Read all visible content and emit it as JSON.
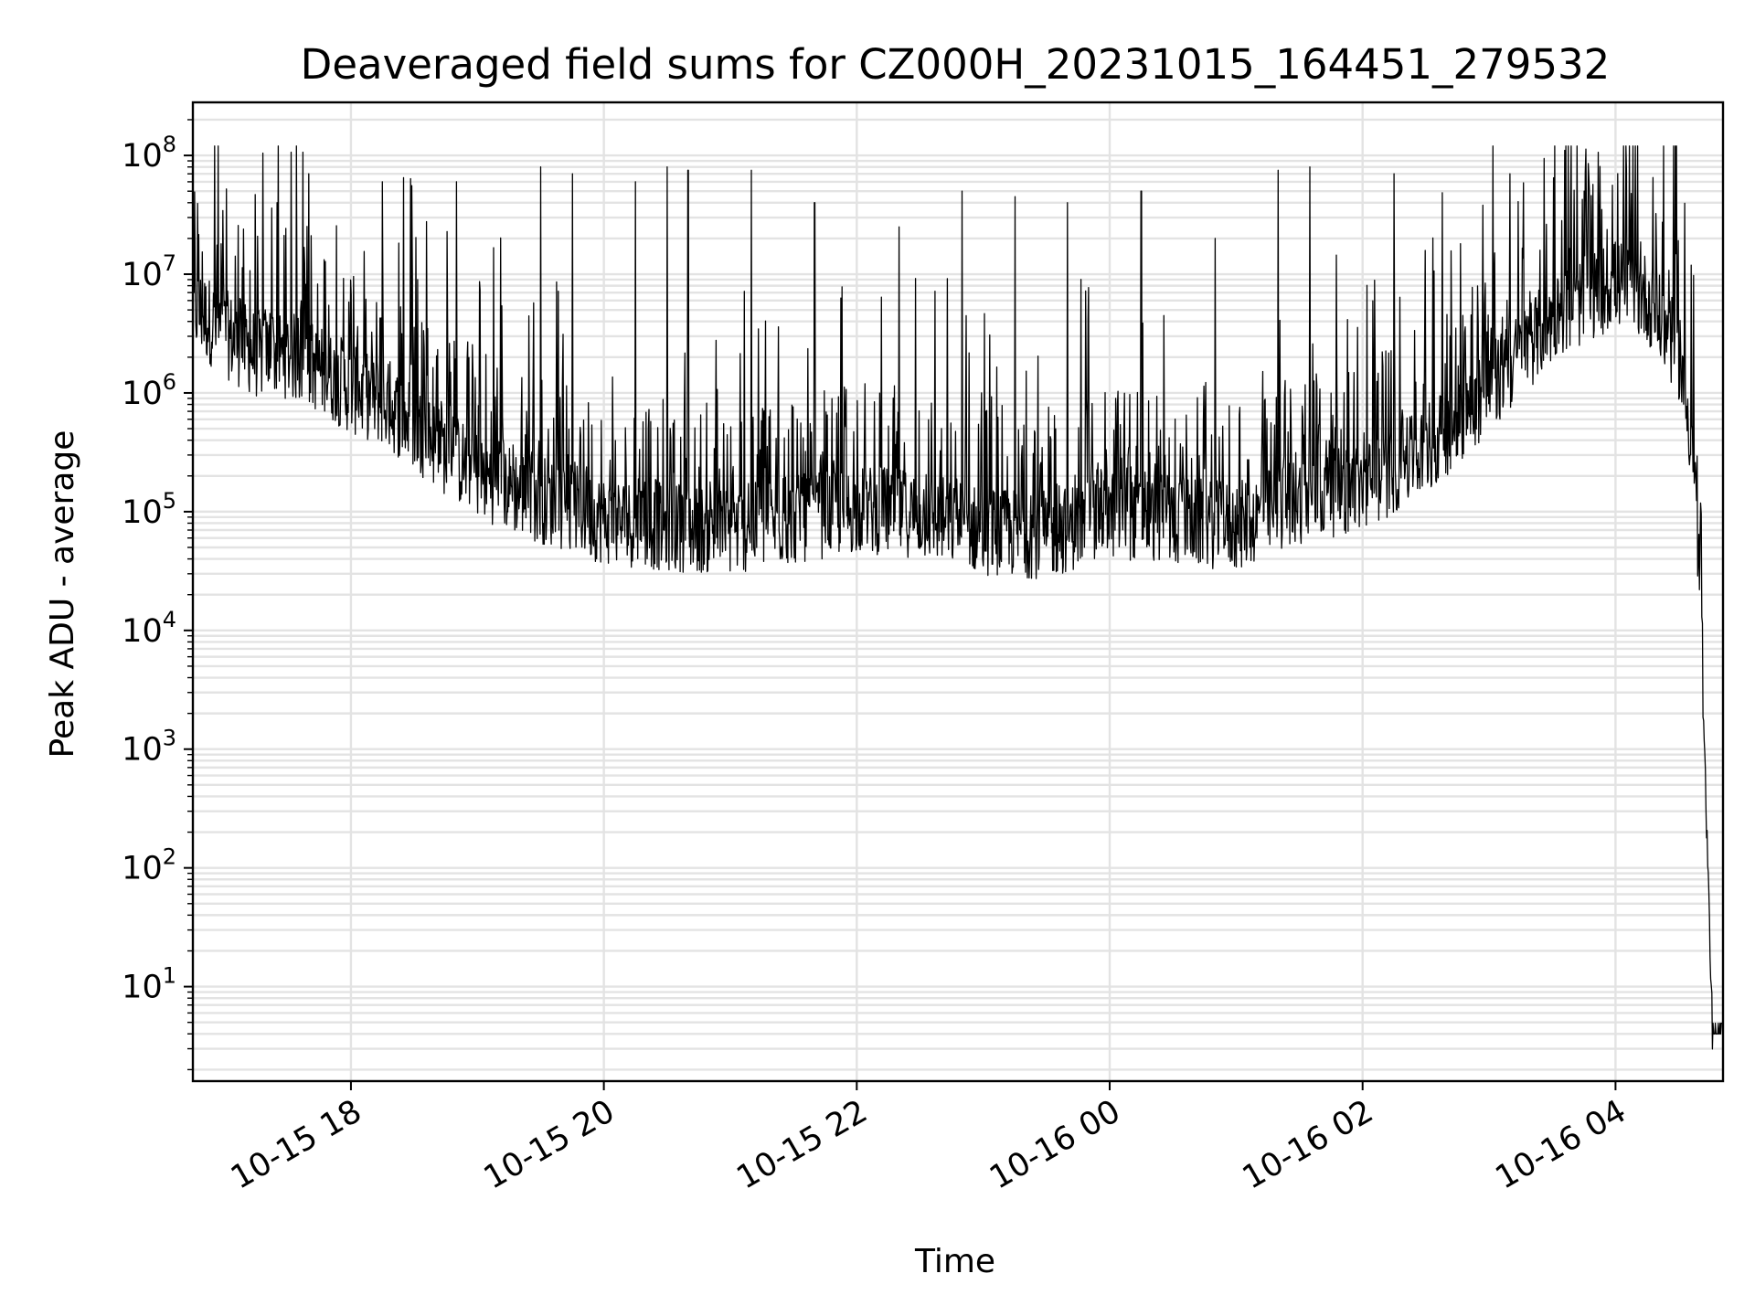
{
  "chart_data": {
    "type": "line",
    "title": "Deaveraged field sums for CZ000H_20231015_164451_279532",
    "xlabel": "Time",
    "ylabel": "Peak ADU - average",
    "yscale": "log",
    "xlim": [
      "2023-10-15 16:45",
      "2023-10-16 04:51"
    ],
    "ylim": [
      1.6,
      280000000
    ],
    "grid": true,
    "grid_color": "#e3e3e3",
    "line_color": "#000000",
    "x_ticks": [
      {
        "value": "2023-10-15 18:00",
        "label": "10-15 18"
      },
      {
        "value": "2023-10-15 20:00",
        "label": "10-15 20"
      },
      {
        "value": "2023-10-15 22:00",
        "label": "10-15 22"
      },
      {
        "value": "2023-10-16 00:00",
        "label": "10-16 00"
      },
      {
        "value": "2023-10-16 02:00",
        "label": "10-16 02"
      },
      {
        "value": "2023-10-16 04:00",
        "label": "10-16 04"
      }
    ],
    "y_ticks": [
      {
        "value": 10,
        "base": "10",
        "exp": "1"
      },
      {
        "value": 100,
        "base": "10",
        "exp": "2"
      },
      {
        "value": 1000,
        "base": "10",
        "exp": "3"
      },
      {
        "value": 10000,
        "base": "10",
        "exp": "4"
      },
      {
        "value": 100000,
        "base": "10",
        "exp": "5"
      },
      {
        "value": 1000000,
        "base": "10",
        "exp": "6"
      },
      {
        "value": 10000000,
        "base": "10",
        "exp": "7"
      },
      {
        "value": 100000000,
        "base": "10",
        "exp": "8"
      }
    ],
    "series": [
      {
        "x": [
          "2023-10-15 16:45",
          "2023-10-15 17:00",
          "2023-10-15 17:15",
          "2023-10-15 17:30",
          "2023-10-15 17:45",
          "2023-10-15 18:00",
          "2023-10-15 18:15",
          "2023-10-15 18:30",
          "2023-10-15 18:45",
          "2023-10-15 19:00",
          "2023-10-15 19:15",
          "2023-10-15 19:30",
          "2023-10-15 19:45",
          "2023-10-15 20:00",
          "2023-10-15 20:30",
          "2023-10-15 21:00",
          "2023-10-15 21:30",
          "2023-10-15 22:00",
          "2023-10-15 22:30",
          "2023-10-15 23:00",
          "2023-10-15 23:30",
          "2023-10-16 00:00",
          "2023-10-16 00:30",
          "2023-10-16 01:00",
          "2023-10-16 01:30",
          "2023-10-16 02:00",
          "2023-10-16 02:30",
          "2023-10-16 03:00",
          "2023-10-16 03:30",
          "2023-10-16 04:00",
          "2023-10-16 04:15",
          "2023-10-16 04:30",
          "2023-10-16 04:37",
          "2023-10-16 04:40",
          "2023-10-16 04:42",
          "2023-10-16 04:44",
          "2023-10-16 04:46",
          "2023-10-16 04:51"
        ],
        "baseline": [
          5000000,
          3000000,
          2000000,
          2000000,
          1500000,
          1000000,
          800000,
          500000,
          300000,
          200000,
          150000,
          120000,
          100000,
          80000,
          70000,
          65000,
          80000,
          100000,
          90000,
          65000,
          60000,
          90000,
          80000,
          70000,
          120000,
          150000,
          300000,
          1000000,
          4000000,
          8000000,
          6000000,
          2000000,
          300000,
          20000,
          1300,
          80,
          4,
          4
        ]
      }
    ],
    "spikes": [
      {
        "x": "2023-10-15 17:25",
        "y": 40000000
      },
      {
        "x": "2023-10-15 17:40",
        "y": 70000000
      },
      {
        "x": "2023-10-15 18:15",
        "y": 60000000
      },
      {
        "x": "2023-10-15 18:25",
        "y": 65000000
      },
      {
        "x": "2023-10-15 18:50",
        "y": 60000000
      },
      {
        "x": "2023-10-15 19:30",
        "y": 80000000
      },
      {
        "x": "2023-10-15 19:45",
        "y": 70000000
      },
      {
        "x": "2023-10-15 20:15",
        "y": 60000000
      },
      {
        "x": "2023-10-15 20:30",
        "y": 80000000
      },
      {
        "x": "2023-10-15 20:40",
        "y": 75000000
      },
      {
        "x": "2023-10-15 21:10",
        "y": 75000000
      },
      {
        "x": "2023-10-15 21:40",
        "y": 40000000
      },
      {
        "x": "2023-10-15 22:20",
        "y": 25000000
      },
      {
        "x": "2023-10-15 22:50",
        "y": 50000000
      },
      {
        "x": "2023-10-15 23:15",
        "y": 45000000
      },
      {
        "x": "2023-10-15 23:40",
        "y": 40000000
      },
      {
        "x": "2023-10-16 00:15",
        "y": 50000000
      },
      {
        "x": "2023-10-16 00:50",
        "y": 20000000
      },
      {
        "x": "2023-10-16 01:20",
        "y": 75000000
      },
      {
        "x": "2023-10-16 01:35",
        "y": 80000000
      },
      {
        "x": "2023-10-16 02:15",
        "y": 70000000
      },
      {
        "x": "2023-10-16 03:10",
        "y": 70000000
      },
      {
        "x": "2023-10-16 03:45",
        "y": 50000000
      },
      {
        "x": "2023-10-16 04:05",
        "y": 120000000
      }
    ]
  }
}
